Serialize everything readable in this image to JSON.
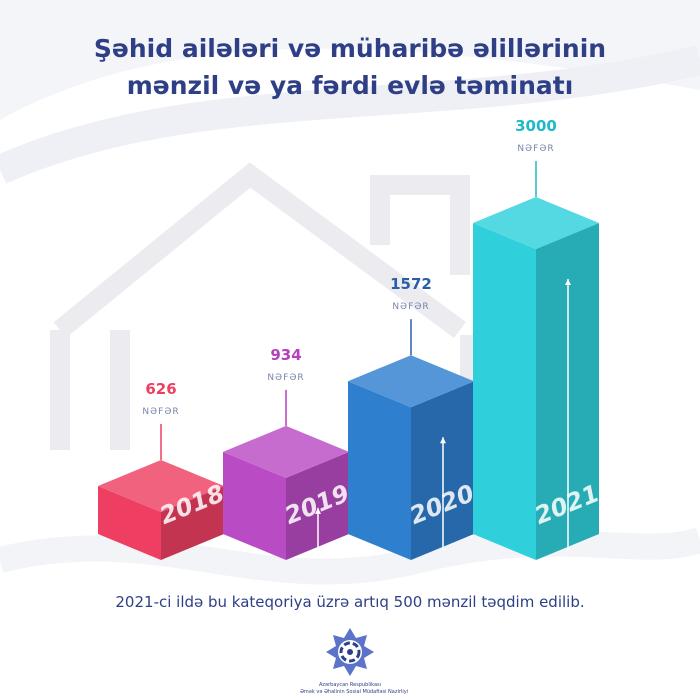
{
  "title": {
    "line1": "Şəhid ailələri və müharibə əlillərinin",
    "line2": "mənzil və ya fərdi evlə təminatı"
  },
  "chart_data": {
    "type": "bar",
    "categories": [
      "2018",
      "2019",
      "2020",
      "2021"
    ],
    "values": [
      626,
      934,
      1572,
      3000
    ],
    "value_unit": "NƏFƏR",
    "colors": [
      "#ee3f63",
      "#b94cc4",
      "#2f7fcf",
      "#2fd0dc"
    ],
    "label_colors": [
      "#ee3f63",
      "#b53fbf",
      "#2a5fa8",
      "#1fb9c6"
    ]
  },
  "footer": {
    "note": "2021-ci ildə bu kateqoriya üzrə artıq 500 mənzil təqdim edilib."
  },
  "logo": {
    "line1": "Azərbaycan Respublikası",
    "line2": "Əmək və Əhalinin Sosial Müdafiəsi Nazirliyi"
  }
}
